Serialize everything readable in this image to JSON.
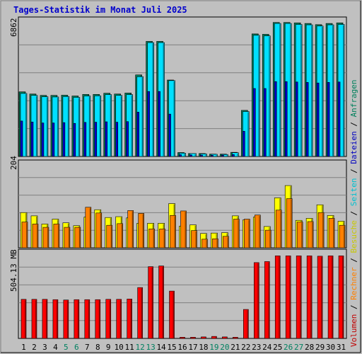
{
  "chart_data": {
    "type": "bar",
    "title": "Tages-Statistik im Monat Juli 2025",
    "categories": [
      "1",
      "2",
      "3",
      "4",
      "5",
      "6",
      "7",
      "8",
      "9",
      "10",
      "11",
      "12",
      "13",
      "14",
      "15",
      "16",
      "17",
      "18",
      "19",
      "20",
      "21",
      "22",
      "23",
      "24",
      "25",
      "26",
      "27",
      "28",
      "29",
      "30",
      "31"
    ],
    "weekend_days": [
      "5",
      "6",
      "12",
      "13",
      "19",
      "20",
      "26",
      "27"
    ],
    "panels": [
      {
        "name": "top",
        "max_label": "6862",
        "ymax": 6862,
        "series": [
          {
            "name": "Anfragen",
            "color": "#00805c",
            "values": [
              3280,
              3170,
              3100,
              3100,
              3110,
              3070,
              3150,
              3150,
              3210,
              3170,
              3220,
              4140,
              5840,
              5840,
              3880,
              200,
              150,
              150,
              120,
              120,
              210,
              2340,
              6220,
              6200,
              6800,
              6800,
              6780,
              6750,
              6690,
              6750,
              6780
            ]
          },
          {
            "name": "Seiten",
            "color": "#00e0ff",
            "values": [
              3200,
              3100,
              3030,
              3020,
              3040,
              3000,
              3070,
              3080,
              3140,
              3100,
              3140,
              4050,
              5780,
              5780,
              3850,
              170,
              150,
              130,
              110,
              100,
              190,
              2280,
              6150,
              6120,
              6750,
              6750,
              6700,
              6680,
              6620,
              6680,
              6700
            ]
          },
          {
            "name": "Dateien",
            "color": "#0000d0",
            "values": [
              1800,
              1750,
              1700,
              1700,
              1720,
              1680,
              1730,
              1740,
              1760,
              1740,
              1770,
              2250,
              3300,
              3300,
              2150,
              90,
              80,
              70,
              60,
              60,
              100,
              1280,
              3450,
              3450,
              3800,
              3800,
              3780,
              3760,
              3730,
              3760,
              3780
            ]
          }
        ]
      },
      {
        "name": "middle",
        "max_label": "204",
        "ymax": 204,
        "series": [
          {
            "name": "Besuche",
            "color": "#ffff00",
            "values": [
              86,
              78,
              58,
              70,
              61,
              54,
              75,
              93,
              74,
              76,
              73,
              60,
              60,
              60,
              108,
              53,
              56,
              35,
              36,
              37,
              78,
              68,
              75,
              52,
              122,
              152,
              67,
              72,
              105,
              79,
              65
            ]
          },
          {
            "name": "Rechner",
            "color": "#ff8000",
            "values": [
              63,
              58,
              50,
              58,
              50,
              50,
              99,
              85,
              55,
              59,
              91,
              84,
              46,
              46,
              79,
              90,
              42,
              21,
              22,
              28,
              70,
              70,
              80,
              43,
              92,
              120,
              63,
              64,
              86,
              72,
              55
            ]
          }
        ]
      },
      {
        "name": "bottom",
        "max_label": "504.13 MB",
        "ymax": 504.13,
        "series": [
          {
            "name": "Volumen",
            "color": "#ff0000",
            "values": [
              232,
              232,
              232,
              230,
              228,
              230,
              230,
              230,
              232,
              232,
              234,
              302,
              426,
              430,
              281,
              7,
              7,
              9,
              12,
              9,
              7,
              172,
              450,
              456,
              490,
              490,
              490,
              490,
              488,
              490,
              490
            ]
          }
        ]
      }
    ],
    "legend": [
      {
        "label": "Volumen",
        "color": "#c00000"
      },
      {
        "label": "Rechner",
        "color": "#ff8000"
      },
      {
        "label": "Besuche",
        "color": "#c8c800"
      },
      {
        "label": "Seiten",
        "color": "#00c0d0"
      },
      {
        "label": "Dateien",
        "color": "#0000c0"
      },
      {
        "label": "Anfragen",
        "color": "#00805c"
      }
    ],
    "separator": " / "
  },
  "colors": {
    "background": "#c0c0c0",
    "title": "#0000cc",
    "weekend": "#008060",
    "gridline": "#808080"
  }
}
